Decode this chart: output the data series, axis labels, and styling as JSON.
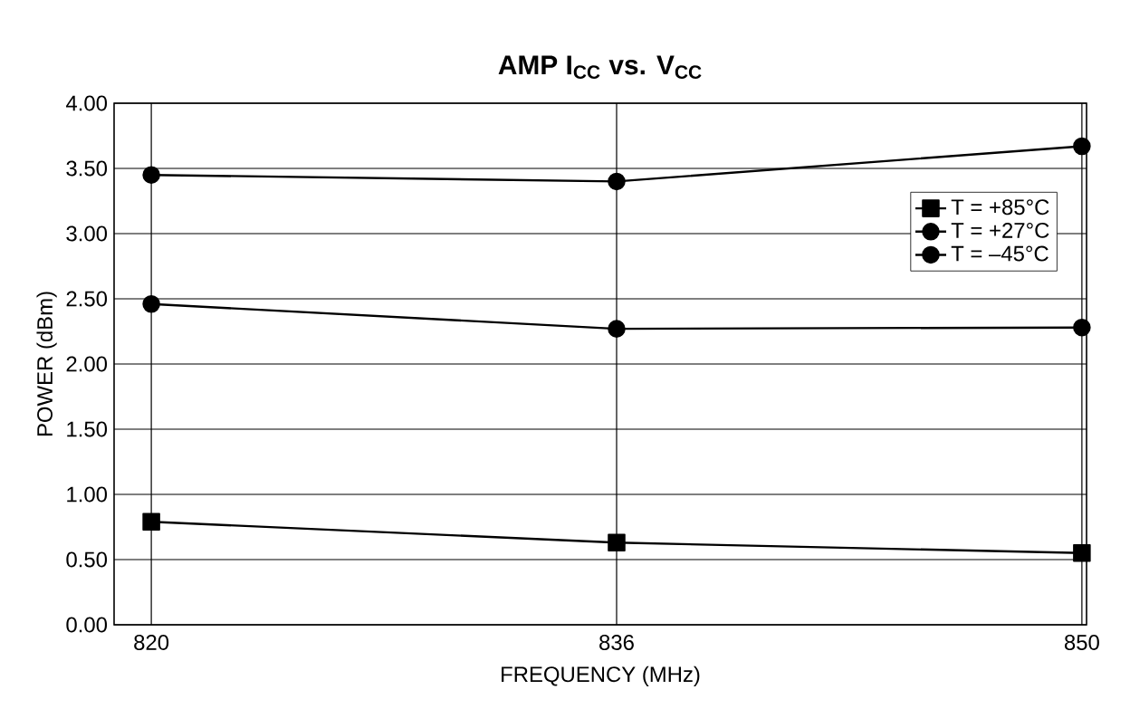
{
  "chart_data": {
    "type": "line",
    "title": "**AMP I$_{CC}$ vs. V$_{CC}$**",
    "xlabel": "FREQUENCY (MHz)",
    "ylabel": "POWER (dBm)",
    "categories": [
      "820",
      "836",
      "850"
    ],
    "series": [
      {
        "name": "T = +85°C",
        "color": "#000000",
        "marker": "square",
        "values": [
          0.79,
          0.63,
          0.55
        ]
      },
      {
        "name": "T = +27°C",
        "color": "#000000",
        "marker": "circle",
        "values": [
          2.46,
          2.27,
          2.28
        ]
      },
      {
        "name": "T = –45°C",
        "color": "#000000",
        "marker": "circle",
        "values": [
          3.45,
          3.4,
          3.67
        ]
      }
    ],
    "ylim": [
      0,
      4
    ],
    "yticks": [
      {
        "value": 0,
        "label": "0.00"
      },
      {
        "value": 0.5,
        "label": "0.50"
      },
      {
        "value": 1,
        "label": "1.00"
      },
      {
        "value": 1.5,
        "label": "1.50"
      },
      {
        "value": 2,
        "label": "2.00"
      },
      {
        "value": 2.5,
        "label": "2.50"
      },
      {
        "value": 3,
        "label": "3.00"
      },
      {
        "value": 3.5,
        "label": "3.50"
      },
      {
        "value": 4,
        "label": "4.00"
      }
    ],
    "grid": true,
    "legend": "top right",
    "line_style": "solid"
  }
}
